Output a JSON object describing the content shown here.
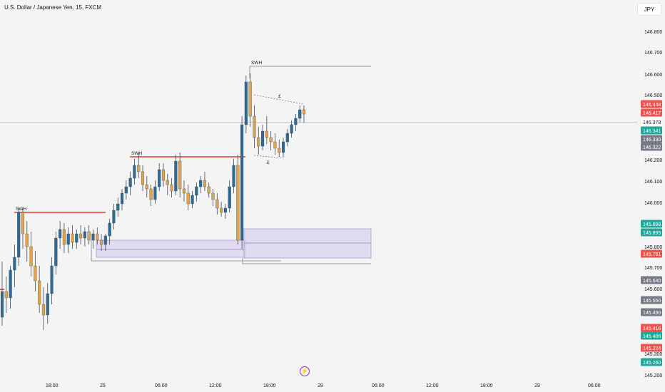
{
  "header": {
    "title": "U.S. Dollar / Japanese Yen, 15, FXCM",
    "currency": "JPY"
  },
  "footer": {
    "logo_icon": "bolt-icon",
    "logo_color": "#9c27b0"
  },
  "colors": {
    "bull": "#2e6b93",
    "bear": "#e0a44e",
    "swing_line": "#e53935",
    "zone_fill": "#d9d3ec",
    "zone_border": "#8f84c2",
    "grid": "#f4f4f4"
  },
  "chart_data": {
    "type": "candlestick",
    "symbol": "USDJPY",
    "timeframe": "15",
    "y_ticks": [
      "146.800",
      "146.700",
      "146.600",
      "146.500",
      "146.448",
      "146.417",
      "146.378",
      "146.341",
      "146.330",
      "146.322",
      "146.200",
      "146.100",
      "146.000",
      "145.898",
      "145.895",
      "145.800",
      "145.761",
      "145.700",
      "145.640",
      "145.600",
      "145.550",
      "145.490",
      "145.416",
      "145.406",
      "145.324",
      "145.300",
      "145.260",
      "145.200"
    ],
    "x_ticks": [
      "18:00",
      "25",
      "06:00",
      "12:00",
      "18:00",
      "28",
      "06:00",
      "12:00",
      "18:00",
      "29",
      "06:00"
    ],
    "price_labels": [
      {
        "value": "146.448",
        "color": "#ef5350"
      },
      {
        "value": "146.417",
        "color": "#ef5350"
      },
      {
        "value": "146.378",
        "color": "#ffffff"
      },
      {
        "value": "146.341",
        "color": "#26a69a"
      },
      {
        "value": "146.330",
        "color": "#787b86"
      },
      {
        "value": "146.322",
        "color": "#787b86"
      },
      {
        "value": "145.898",
        "color": "#26a69a"
      },
      {
        "value": "145.895",
        "color": "#26a69a"
      },
      {
        "value": "145.761",
        "color": "#ef5350"
      },
      {
        "value": "145.640",
        "color": "#787b86"
      },
      {
        "value": "145.550",
        "color": "#787b86"
      },
      {
        "value": "145.490",
        "color": "#787b86"
      },
      {
        "value": "145.416",
        "color": "#ef5350"
      },
      {
        "value": "145.406",
        "color": "#26a69a"
      },
      {
        "value": "145.324",
        "color": "#ef5350"
      },
      {
        "value": "145.260",
        "color": "#26a69a"
      }
    ],
    "annotations": [
      "SWH",
      "SWH",
      "SWH",
      "£",
      "£"
    ],
    "candles_ohlc": [
      [
        145.46,
        145.72,
        145.42,
        145.58
      ],
      [
        145.58,
        145.65,
        145.48,
        145.55
      ],
      [
        145.55,
        145.7,
        145.5,
        145.68
      ],
      [
        145.68,
        145.8,
        145.6,
        145.74
      ],
      [
        145.74,
        145.97,
        145.7,
        145.95
      ],
      [
        145.95,
        145.97,
        145.78,
        145.85
      ],
      [
        145.85,
        145.91,
        145.72,
        145.79
      ],
      [
        145.79,
        145.86,
        145.65,
        145.7
      ],
      [
        145.7,
        145.77,
        145.58,
        145.63
      ],
      [
        145.63,
        145.7,
        145.48,
        145.52
      ],
      [
        145.52,
        145.6,
        145.4,
        145.47
      ],
      [
        145.47,
        145.62,
        145.43,
        145.57
      ],
      [
        145.57,
        145.74,
        145.52,
        145.7
      ],
      [
        145.7,
        145.86,
        145.66,
        145.83
      ],
      [
        145.83,
        145.91,
        145.78,
        145.87
      ],
      [
        145.87,
        145.9,
        145.76,
        145.8
      ],
      [
        145.8,
        145.88,
        145.76,
        145.85
      ],
      [
        145.85,
        145.89,
        145.78,
        145.81
      ],
      [
        145.81,
        145.87,
        145.78,
        145.85
      ],
      [
        145.85,
        145.89,
        145.8,
        145.83
      ],
      [
        145.83,
        145.88,
        145.79,
        145.86
      ],
      [
        145.86,
        145.89,
        145.8,
        145.82
      ],
      [
        145.82,
        145.87,
        145.78,
        145.85
      ],
      [
        145.85,
        145.88,
        145.8,
        145.82
      ],
      [
        145.82,
        145.85,
        145.77,
        145.8
      ],
      [
        145.8,
        145.85,
        145.77,
        145.84
      ],
      [
        145.84,
        145.92,
        145.8,
        145.9
      ],
      [
        145.9,
        145.99,
        145.87,
        145.96
      ],
      [
        145.96,
        146.02,
        145.93,
        145.99
      ],
      [
        145.99,
        146.06,
        145.96,
        146.04
      ],
      [
        146.04,
        146.1,
        146.01,
        146.07
      ],
      [
        146.07,
        146.14,
        146.03,
        146.11
      ],
      [
        146.11,
        146.2,
        146.08,
        146.17
      ],
      [
        146.17,
        146.23,
        146.11,
        146.14
      ],
      [
        146.14,
        146.17,
        146.05,
        146.08
      ],
      [
        146.08,
        146.12,
        146.02,
        146.06
      ],
      [
        146.06,
        146.08,
        145.98,
        146.01
      ],
      [
        146.01,
        146.1,
        145.99,
        146.07
      ],
      [
        146.07,
        146.18,
        146.05,
        146.15
      ],
      [
        146.15,
        146.18,
        146.07,
        146.1
      ],
      [
        146.1,
        146.13,
        146.03,
        146.08
      ],
      [
        146.08,
        146.11,
        146.02,
        146.05
      ],
      [
        146.05,
        146.22,
        146.03,
        146.19
      ],
      [
        146.19,
        146.23,
        146.02,
        146.06
      ],
      [
        146.06,
        146.1,
        146.0,
        146.04
      ],
      [
        146.04,
        146.08,
        145.96,
        145.99
      ],
      [
        145.99,
        146.05,
        145.97,
        146.03
      ],
      [
        146.03,
        146.09,
        146.0,
        146.07
      ],
      [
        146.07,
        146.12,
        146.04,
        146.1
      ],
      [
        146.1,
        146.14,
        146.05,
        146.07
      ],
      [
        146.07,
        146.09,
        146.02,
        146.04
      ],
      [
        146.04,
        146.06,
        145.98,
        146.01
      ],
      [
        146.01,
        146.04,
        145.94,
        145.97
      ],
      [
        145.97,
        146.0,
        145.93,
        145.95
      ],
      [
        145.95,
        145.99,
        145.92,
        145.97
      ],
      [
        145.97,
        146.1,
        145.95,
        146.07
      ],
      [
        146.07,
        146.2,
        146.04,
        146.17
      ],
      [
        146.17,
        146.22,
        145.8,
        145.82
      ],
      [
        145.82,
        146.4,
        145.78,
        146.36
      ],
      [
        146.36,
        146.59,
        146.32,
        146.56
      ],
      [
        146.56,
        146.6,
        146.35,
        146.4
      ],
      [
        146.4,
        146.45,
        146.25,
        146.3
      ],
      [
        146.3,
        146.35,
        146.22,
        146.26
      ],
      [
        146.26,
        146.36,
        146.24,
        146.33
      ],
      [
        146.33,
        146.4,
        146.27,
        146.3
      ],
      [
        146.3,
        146.33,
        146.24,
        146.28
      ],
      [
        146.28,
        146.32,
        146.22,
        146.25
      ],
      [
        146.25,
        146.29,
        146.21,
        146.23
      ],
      [
        146.23,
        146.3,
        146.21,
        146.28
      ],
      [
        146.28,
        146.34,
        146.26,
        146.32
      ],
      [
        146.32,
        146.38,
        146.3,
        146.36
      ],
      [
        146.36,
        146.41,
        146.33,
        146.39
      ],
      [
        146.39,
        146.45,
        146.37,
        146.43
      ],
      [
        146.43,
        146.45,
        146.37,
        146.41
      ]
    ]
  }
}
